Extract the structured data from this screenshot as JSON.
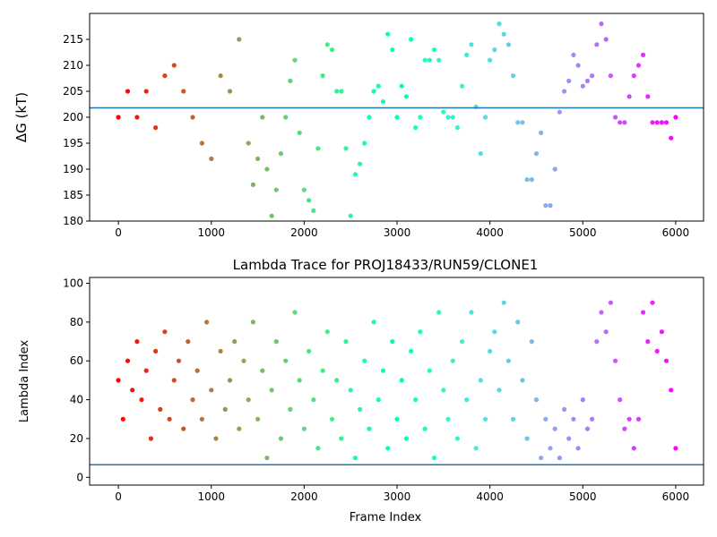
{
  "chart_data": [
    {
      "type": "scatter",
      "title": "",
      "xlabel": "",
      "ylabel": "ΔG (kT)",
      "xlim": [
        -310,
        6300
      ],
      "ylim": [
        180,
        220
      ],
      "xticks": [
        0,
        1000,
        2000,
        3000,
        4000,
        5000,
        6000
      ],
      "yticks": [
        180,
        185,
        190,
        195,
        200,
        205,
        210,
        215
      ],
      "hline": 201.8,
      "colormap": "rainbow (red at frame 0 to violet at frame 6000)",
      "hline_color": "#1f77b4",
      "series": [
        {
          "x": [
            0,
            100,
            200,
            300,
            400,
            500,
            600,
            700,
            800,
            900,
            1000,
            1100,
            1200,
            1300,
            1400,
            1450,
            1500,
            1550,
            1600,
            1650,
            1700,
            1750,
            1800,
            1850,
            1900,
            1950,
            2000,
            2050,
            2100,
            2150,
            2200,
            2250,
            2300,
            2350,
            2400,
            2450,
            2500,
            2550,
            2600,
            2650,
            2700,
            2750,
            2800,
            2850,
            2900,
            2950,
            3000,
            3050,
            3100,
            3150,
            3200,
            3250,
            3300,
            3350,
            3400,
            3450,
            3500,
            3550,
            3600,
            3650,
            3700,
            3750,
            3800,
            3850,
            3900,
            3950,
            4000,
            4050,
            4100,
            4150,
            4200,
            4250,
            4300,
            4350,
            4400,
            4450,
            4500,
            4550,
            4600,
            4650,
            4700,
            4750,
            4800,
            4850,
            4900,
            4950,
            5000,
            5050,
            5100,
            5150,
            5200,
            5250,
            5300,
            5350,
            5400,
            5450,
            5500,
            5550,
            5600,
            5650,
            5700,
            5750,
            5800,
            5850,
            5900,
            5950,
            6000
          ],
          "y": [
            200,
            205,
            200,
            205,
            198,
            208,
            210,
            205,
            200,
            195,
            192,
            208,
            205,
            215,
            195,
            187,
            192,
            200,
            190,
            181,
            186,
            193,
            200,
            207,
            211,
            197,
            186,
            184,
            182,
            194,
            208,
            214,
            213,
            205,
            205,
            194,
            181,
            189,
            191,
            195,
            200,
            205,
            206,
            203,
            216,
            213,
            200,
            206,
            204,
            215,
            198,
            200,
            211,
            211,
            213,
            211,
            201,
            200,
            200,
            198,
            206,
            212,
            214,
            202,
            193,
            200,
            211,
            213,
            218,
            216,
            214,
            208,
            199,
            199,
            188,
            188,
            193,
            197,
            183,
            183,
            190,
            201,
            205,
            207,
            212,
            210,
            206,
            207,
            208,
            214,
            218,
            215,
            208,
            200,
            199,
            199,
            204,
            208,
            210,
            212,
            204,
            199,
            199,
            199,
            199,
            196,
            200
          ]
        }
      ]
    },
    {
      "type": "scatter",
      "title": "Lambda Trace for PROJ18433/RUN59/CLONE1",
      "xlabel": "Frame Index",
      "ylabel": "Lambda Index",
      "xlim": [
        -310,
        6300
      ],
      "ylim": [
        -4,
        103
      ],
      "xticks": [
        0,
        1000,
        2000,
        3000,
        4000,
        5000,
        6000
      ],
      "yticks": [
        0,
        20,
        40,
        60,
        80,
        100
      ],
      "hline": 6.5,
      "colormap": "rainbow (red at frame 0 to violet at frame 6000)",
      "hline_color": "#1f77b4",
      "series": [
        {
          "x": [
            0,
            50,
            100,
            150,
            200,
            250,
            300,
            350,
            400,
            450,
            500,
            550,
            600,
            650,
            700,
            750,
            800,
            850,
            900,
            950,
            1000,
            1050,
            1100,
            1150,
            1200,
            1250,
            1300,
            1350,
            1400,
            1450,
            1500,
            1550,
            1600,
            1650,
            1700,
            1750,
            1800,
            1850,
            1900,
            1950,
            2000,
            2050,
            2100,
            2150,
            2200,
            2250,
            2300,
            2350,
            2400,
            2450,
            2500,
            2550,
            2600,
            2650,
            2700,
            2750,
            2800,
            2850,
            2900,
            2950,
            3000,
            3050,
            3100,
            3150,
            3200,
            3250,
            3300,
            3350,
            3400,
            3450,
            3500,
            3550,
            3600,
            3650,
            3700,
            3750,
            3800,
            3850,
            3900,
            3950,
            4000,
            4050,
            4100,
            4150,
            4200,
            4250,
            4300,
            4350,
            4400,
            4450,
            4500,
            4550,
            4600,
            4650,
            4700,
            4750,
            4800,
            4850,
            4900,
            4950,
            5000,
            5050,
            5100,
            5150,
            5200,
            5250,
            5300,
            5350,
            5400,
            5450,
            5500,
            5550,
            5600,
            5650,
            5700,
            5750,
            5800,
            5850,
            5900,
            5950,
            6000
          ],
          "y": [
            50,
            30,
            60,
            45,
            70,
            40,
            55,
            20,
            65,
            35,
            75,
            30,
            50,
            60,
            25,
            70,
            40,
            55,
            30,
            80,
            45,
            20,
            65,
            35,
            50,
            70,
            25,
            60,
            40,
            80,
            30,
            55,
            10,
            45,
            70,
            20,
            60,
            35,
            85,
            50,
            25,
            65,
            40,
            15,
            55,
            75,
            30,
            50,
            20,
            70,
            45,
            10,
            35,
            60,
            25,
            80,
            40,
            55,
            15,
            70,
            30,
            50,
            20,
            65,
            40,
            75,
            25,
            55,
            10,
            85,
            45,
            30,
            60,
            20,
            70,
            40,
            85,
            15,
            50,
            30,
            65,
            75,
            45,
            90,
            60,
            30,
            80,
            50,
            20,
            70,
            40,
            10,
            30,
            15,
            25,
            10,
            35,
            20,
            30,
            15,
            40,
            25,
            30,
            70,
            85,
            75,
            90,
            60,
            40,
            25,
            30,
            15,
            30,
            85,
            70,
            90,
            65,
            75,
            60,
            45,
            15
          ]
        }
      ]
    }
  ]
}
